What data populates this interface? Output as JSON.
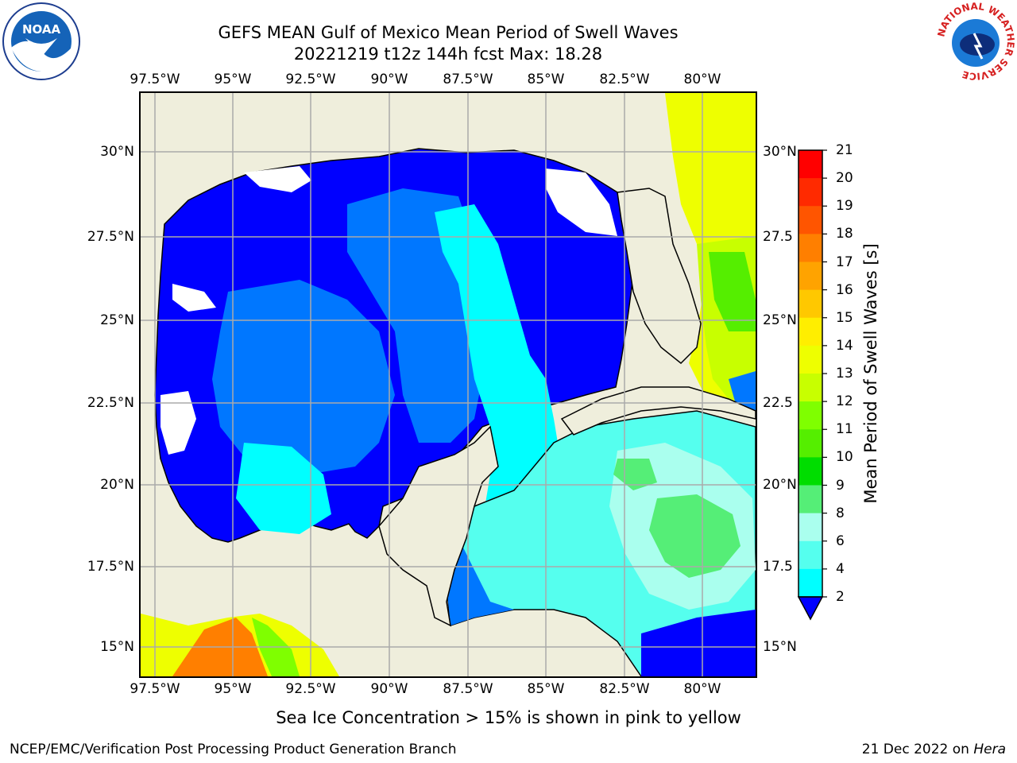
{
  "title_line1": "GEFS MEAN Gulf of Mexico Mean Period of Swell Waves",
  "title_line2": "20221219 t12z 144h fcst   Max: 18.28",
  "lon_ticks": [
    "97.5°W",
    "95°W",
    "92.5°W",
    "90°W",
    "87.5°W",
    "85°W",
    "82.5°W",
    "80°W"
  ],
  "lat_ticks_left": [
    "30°N",
    "27.5°N",
    "25°N",
    "22.5°N",
    "20°N",
    "17.5°N",
    "15°N"
  ],
  "lat_ticks_right": [
    "30°N",
    "27.5",
    "25°N",
    "22.5",
    "20°N",
    "17.5",
    "15°N"
  ],
  "colorbar": {
    "label": "Mean Period of Swell Waves [s]",
    "levels": [
      "21",
      "20",
      "19",
      "18",
      "17",
      "16",
      "15",
      "14",
      "13",
      "12",
      "11",
      "10",
      "9",
      "8",
      "6",
      "4",
      "2"
    ],
    "colors": [
      "#ff0000",
      "#ff2a00",
      "#ff5500",
      "#ff7f00",
      "#ffa300",
      "#ffc800",
      "#ffee00",
      "#eeff00",
      "#c8ff00",
      "#7fff00",
      "#55ee00",
      "#00dd00",
      "#55ee77",
      "#aaffee",
      "#55ffee",
      "#00ffff",
      "#0077ff",
      "#0000ff"
    ],
    "extend": "min"
  },
  "note": "Sea Ice Concentration > 15% is shown in pink to yellow",
  "footer_left": "NCEP/EMC/Verification Post Processing Product Generation Branch",
  "footer_date": "21 Dec 2022 on ",
  "footer_host": "Hera",
  "logos": {
    "left": "noaa-logo",
    "right": "nws-logo"
  },
  "logo_text": {
    "noaa": "NOAA",
    "nws_ring": "NATIONAL WEATHER SERVICE"
  }
}
